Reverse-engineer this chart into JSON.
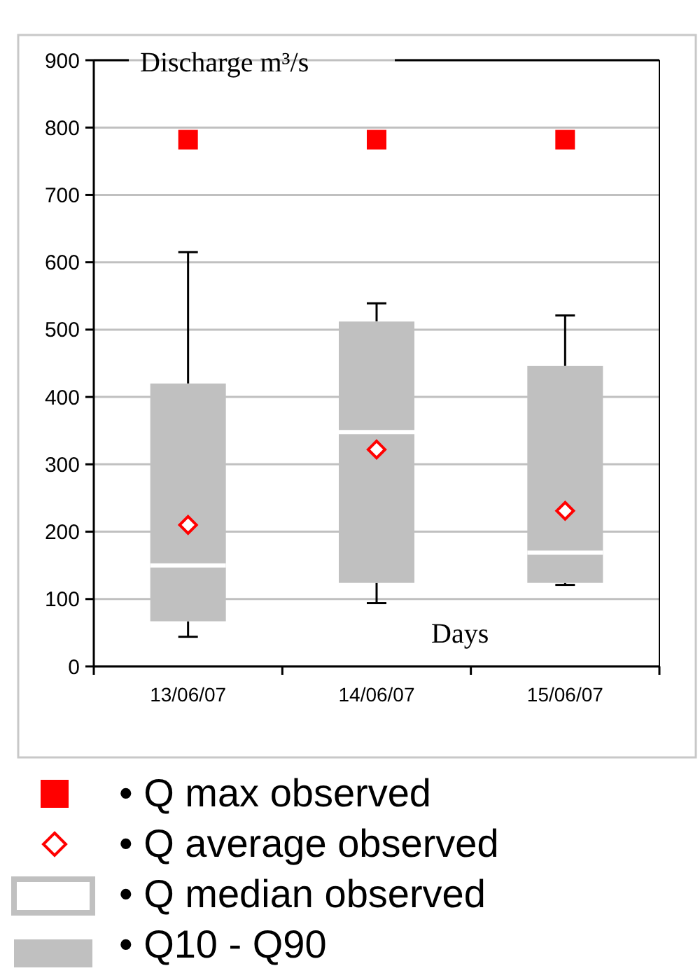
{
  "chart_data": {
    "type": "box",
    "ylabel": "Discharge m³/s",
    "xlabel": "Days",
    "categories": [
      "13/06/07",
      "14/06/07",
      "15/06/07"
    ],
    "ylim": [
      0,
      900
    ],
    "yticks": [
      0,
      100,
      200,
      300,
      400,
      500,
      600,
      700,
      800,
      900
    ],
    "grid": "y",
    "legend": "bottom",
    "annotations": [
      "• Q median observed"
    ],
    "series": [
      {
        "type": "scatter",
        "name": "• Q max observed",
        "color": "#ff0000",
        "marker": "square",
        "values": [
          782,
          782,
          782
        ]
      },
      {
        "type": "scatter",
        "name": "• Q average observed",
        "color": "#ff0000",
        "marker": "diamond",
        "values": [
          210,
          322,
          231
        ]
      },
      {
        "type": "box",
        "name": "• Q10 - Q90",
        "color": "#c0c0c0",
        "boxes": [
          {
            "low": 44,
            "q1": 67,
            "median": 150,
            "q3": 420,
            "high": 615
          },
          {
            "low": 94,
            "q1": 124,
            "median": 348,
            "q3": 512,
            "high": 539
          },
          {
            "low": 121,
            "q1": 124,
            "median": 169,
            "q3": 446,
            "high": 521
          }
        ]
      }
    ]
  }
}
